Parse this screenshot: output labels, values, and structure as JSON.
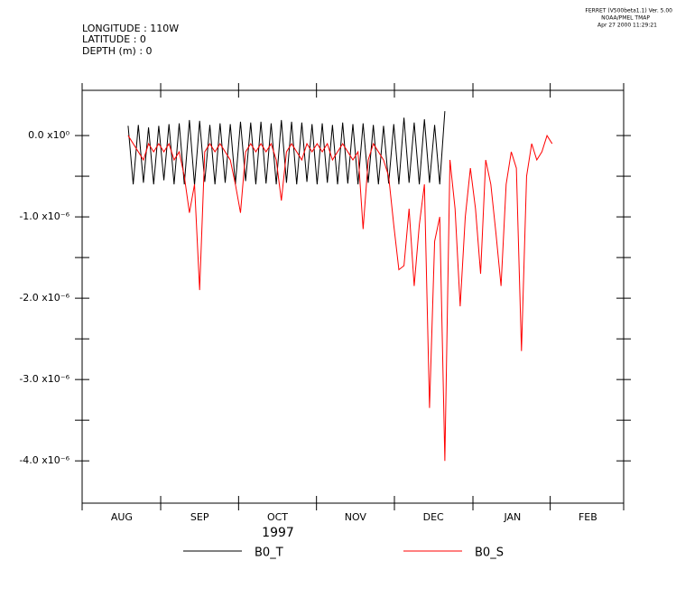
{
  "header": {
    "lines": [
      "LONGITUDE : 110W",
      "LATITUDE : 0",
      "DEPTH (m) : 0"
    ],
    "stamp": [
      "FERRET (V500beta1.1) Ver. 5.00",
      "NOAA/PMEL TMAP",
      "Apr 27 2000 11:29:21"
    ]
  },
  "chart_data": {
    "type": "line",
    "xlabel": "1997",
    "x": [
      18,
      20,
      22,
      24,
      26,
      28,
      30,
      32,
      34,
      36,
      38,
      40,
      42,
      44,
      46,
      48,
      50,
      52,
      54,
      56,
      58,
      60,
      62,
      64,
      66,
      68,
      70,
      72,
      74,
      76,
      78,
      80,
      82,
      84,
      86,
      88,
      90,
      92,
      94,
      96,
      98,
      100,
      102,
      104,
      106,
      108,
      110,
      112,
      114,
      116,
      118,
      120,
      122,
      124,
      126,
      128,
      130,
      132,
      134,
      136,
      138,
      140,
      142,
      144,
      146,
      148,
      150,
      152,
      154,
      156,
      158,
      160,
      162,
      164,
      166,
      168,
      170,
      172,
      174,
      176,
      178,
      180,
      182,
      184
    ],
    "xlim": [
      0,
      212
    ],
    "xticks": [
      {
        "value": 15.5,
        "label": "AUG"
      },
      {
        "value": 46,
        "label": "SEP"
      },
      {
        "value": 76.5,
        "label": "OCT"
      },
      {
        "value": 107,
        "label": "NOV"
      },
      {
        "value": 137.5,
        "label": "DEC"
      },
      {
        "value": 168.5,
        "label": "JAN"
      },
      {
        "value": 198,
        "label": "FEB"
      }
    ],
    "ylim": [
      -4.52e-06,
      5.56e-07
    ],
    "yticks": [
      {
        "value": 0,
        "label": "0.0 x10⁰"
      },
      {
        "value": -1e-06,
        "label": "-1.0 x10⁻⁶"
      },
      {
        "value": -2e-06,
        "label": "-2.0 x10⁻⁶"
      },
      {
        "value": -3e-06,
        "label": "-3.0 x10⁻⁶"
      },
      {
        "value": -4e-06,
        "label": "-4.0 x10⁻⁶"
      }
    ],
    "series": [
      {
        "name": "B0_T",
        "color": "#000000",
        "values": [
          1.2e-07,
          -6e-07,
          1.3e-07,
          -5.8e-07,
          1e-07,
          -6e-07,
          1.2e-07,
          -5.5e-07,
          1.4e-07,
          -6e-07,
          1.5e-07,
          -6e-07,
          1.9e-07,
          -6.1e-07,
          1.8e-07,
          -5.7e-07,
          1.3e-07,
          -6e-07,
          1.5e-07,
          -5.8e-07,
          1.4e-07,
          -6e-07,
          1.7e-07,
          -5.6e-07,
          1.6e-07,
          -6e-07,
          1.7e-07,
          -5.9e-07,
          1.5e-07,
          -6e-07,
          1.9e-07,
          -5.8e-07,
          1.7e-07,
          -6e-07,
          1.6e-07,
          -5.7e-07,
          1.4e-07,
          -6e-07,
          1.5e-07,
          -5.8e-07,
          1.3e-07,
          -6e-07,
          1.6e-07,
          -5.9e-07,
          1.4e-07,
          -6e-07,
          1.5e-07,
          -5.8e-07,
          1.3e-07,
          -6e-07,
          1.2e-07,
          -5.9e-07,
          1.4e-07,
          -6e-07,
          2.2e-07,
          -5.8e-07,
          1.6e-07,
          -6e-07,
          2e-07,
          -5.8e-07,
          1.3e-07,
          -6e-07,
          3e-07,
          null,
          null,
          null,
          null,
          null,
          null,
          null,
          null,
          null,
          null,
          null,
          null,
          null,
          null,
          null,
          null,
          null,
          null,
          null,
          null,
          null
        ]
      },
      {
        "name": "B0_S",
        "color": "#ff0000",
        "values": [
          0,
          -1e-07,
          -2e-07,
          -3e-07,
          -1e-07,
          -2e-07,
          -1e-07,
          -2e-07,
          -1e-07,
          -3e-07,
          -2e-07,
          -5e-07,
          -9.5e-07,
          -6e-07,
          -1.9e-06,
          -2e-07,
          -1e-07,
          -2e-07,
          -1e-07,
          -2e-07,
          -3e-07,
          -6e-07,
          -9.5e-07,
          -2e-07,
          -1e-07,
          -2e-07,
          -1e-07,
          -2e-07,
          -1e-07,
          -3e-07,
          -8e-07,
          -2e-07,
          -1e-07,
          -2e-07,
          -3e-07,
          -1e-07,
          -2e-07,
          -1e-07,
          -2e-07,
          -1e-07,
          -3e-07,
          -2e-07,
          -1e-07,
          -2e-07,
          -3e-07,
          -2e-07,
          -1.15e-06,
          -3e-07,
          -1e-07,
          -2e-07,
          -3e-07,
          -5e-07,
          -1.1e-06,
          -1.65e-06,
          -1.6e-06,
          -9e-07,
          -1.85e-06,
          -1.1e-06,
          -6e-07,
          -3.35e-06,
          -1.3e-06,
          -1e-06,
          -4e-06,
          -3e-07,
          -9e-07,
          -2.1e-06,
          -1e-06,
          -4e-07,
          -9e-07,
          -1.7e-06,
          -3e-07,
          -6e-07,
          -1.2e-06,
          -1.85e-06,
          -6e-07,
          -2e-07,
          -4e-07,
          -2.65e-06,
          -5e-07,
          -1e-07,
          -3e-07,
          -2e-07,
          0,
          -1e-07
        ]
      }
    ]
  }
}
